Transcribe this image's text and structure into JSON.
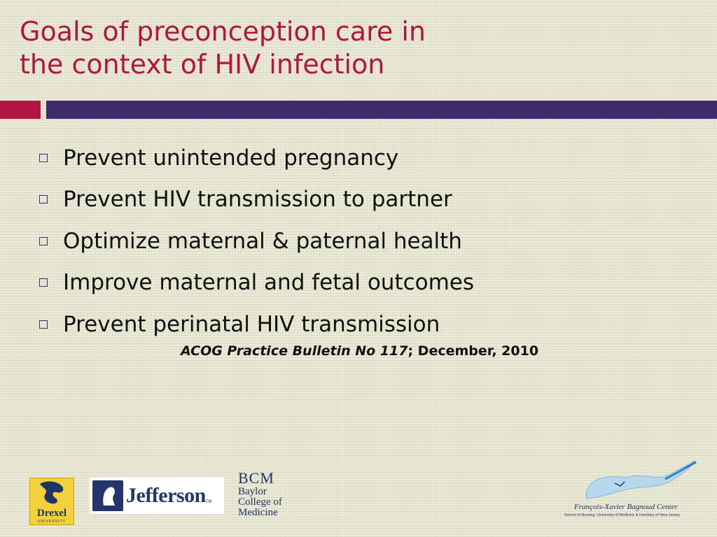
{
  "slide": {
    "title_line1": "Goals of preconception care in",
    "title_line2": "the context of HIV infection",
    "bullets": [
      "Prevent unintended pregnancy",
      "Prevent HIV transmission to partner",
      "Optimize maternal & paternal health",
      "Improve maternal and fetal outcomes",
      "Prevent perinatal HIV transmission"
    ],
    "citation_italic": "ACOG Practice Bulletin No 117",
    "citation_rest": "; December, 2010",
    "bullet_icon": "hollow-square-icon"
  },
  "logos": {
    "drexel": {
      "name": "Drexel",
      "sub": "UNIVERSITY",
      "color": "#f3d03e"
    },
    "jefferson": {
      "name": "Jefferson",
      "tm": "TM",
      "color": "#23356b"
    },
    "bcm": {
      "abbr": "BCM",
      "line1": "Baylor",
      "line2": "College of",
      "line3": "Medicine"
    },
    "fxb": {
      "name": "François-Xavier Bagnoud Center",
      "sub": "School of Nursing, University of Medicine & Dentistry of New Jersey"
    }
  },
  "colors": {
    "title": "#b0163f",
    "accent_bar": "#3f2a6e",
    "background": "#ecebd9"
  }
}
